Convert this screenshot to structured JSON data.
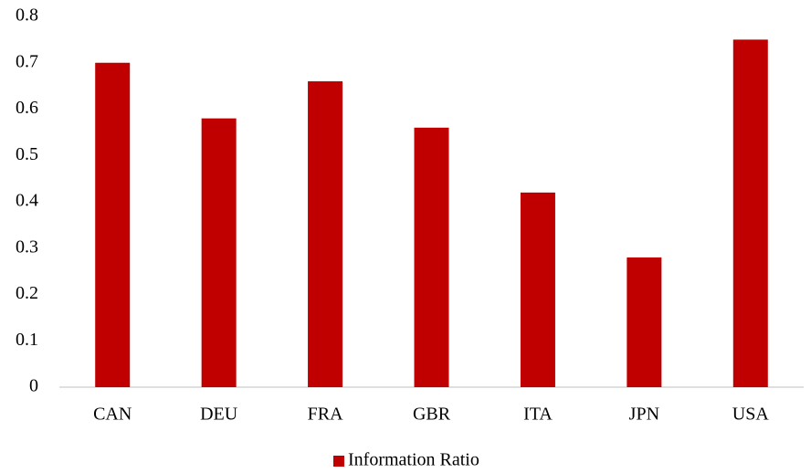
{
  "chart_data": {
    "type": "bar",
    "categories": [
      "CAN",
      "DEU",
      "FRA",
      "GBR",
      "ITA",
      "JPN",
      "USA"
    ],
    "series": [
      {
        "name": "Information Ratio",
        "color": "#c00000",
        "values": [
          0.7,
          0.58,
          0.66,
          0.56,
          0.42,
          0.28,
          0.75
        ]
      }
    ],
    "ylim": [
      0,
      0.8
    ],
    "yticks": [
      0,
      0.1,
      0.2,
      0.3,
      0.4,
      0.5,
      0.6,
      0.7,
      0.8
    ],
    "grid": false,
    "legend": "bottom"
  }
}
